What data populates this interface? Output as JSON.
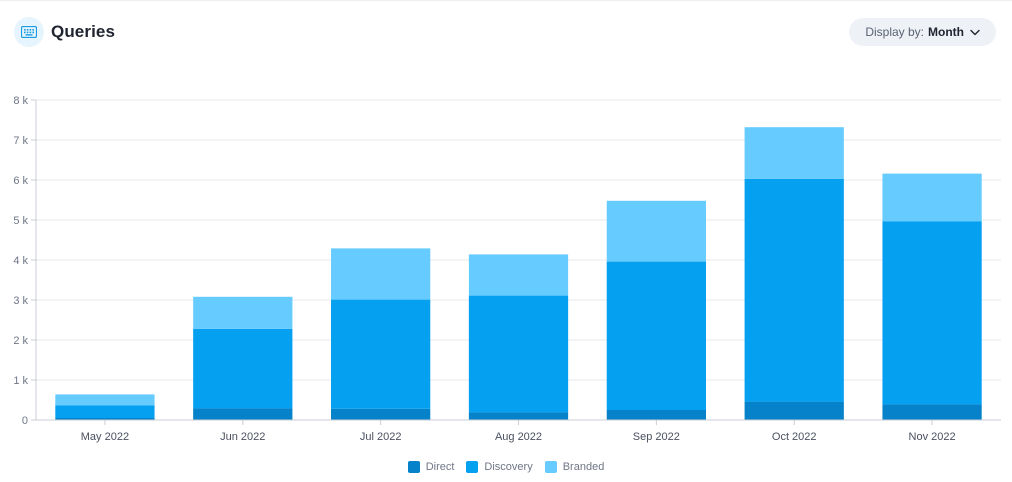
{
  "header": {
    "title": "Queries",
    "icon": "keyboard-icon"
  },
  "display_by": {
    "label": "Display by:",
    "value": "Month"
  },
  "chart_data": {
    "type": "bar",
    "stacked": true,
    "categories": [
      "May 2022",
      "Jun 2022",
      "Jul 2022",
      "Aug 2022",
      "Sep 2022",
      "Oct 2022",
      "Nov 2022"
    ],
    "series": [
      {
        "name": "Direct",
        "color": "#0582c9",
        "values": [
          50,
          290,
          280,
          190,
          250,
          460,
          390
        ]
      },
      {
        "name": "Discovery",
        "color": "#05a0ef",
        "values": [
          320,
          1990,
          2730,
          2920,
          3710,
          5570,
          4580
        ]
      },
      {
        "name": "Branded",
        "color": "#66cbff",
        "values": [
          270,
          800,
          1280,
          1030,
          1520,
          1290,
          1190
        ]
      }
    ],
    "ylim": [
      0,
      8000
    ],
    "yticks": [
      0,
      1000,
      2000,
      3000,
      4000,
      5000,
      6000,
      7000,
      8000
    ],
    "ytick_labels": [
      "0",
      "1 k",
      "2 k",
      "3 k",
      "4 k",
      "5 k",
      "6 k",
      "7 k",
      "8 k"
    ],
    "grid": true,
    "legend_position": "bottom"
  }
}
